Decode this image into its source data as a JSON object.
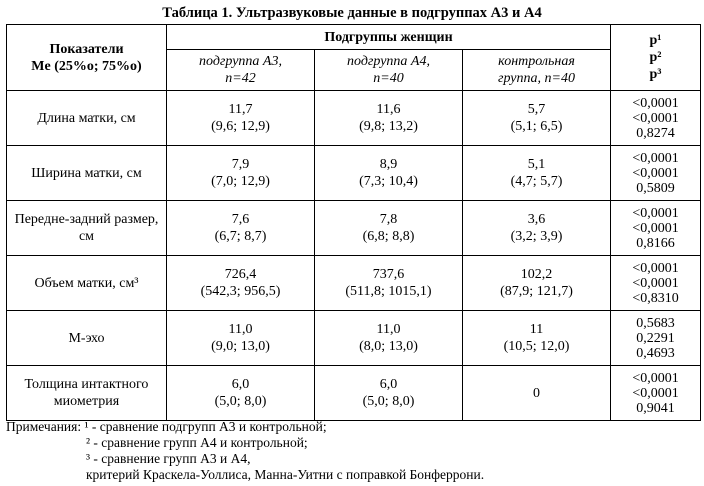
{
  "caption": "Таблица 1. Ультразвуковые данные в подгруппах А3 и А4",
  "header": {
    "indicator_line1": "Показатели",
    "indicator_line2": "Me (25%о; 75%о)",
    "group_title": "Подгруппы женщин",
    "sub_a3_line1": "подгруппа А3,",
    "sub_a3_line2": "n=42",
    "sub_a4_line1": "подгруппа А4,",
    "sub_a4_line2": "n=40",
    "sub_control_line1": "контрольная",
    "sub_control_line2": "группа, n=40",
    "p1": "р¹",
    "p2": "р²",
    "p3": "р³"
  },
  "rows": [
    {
      "name": "Длина матки, см",
      "a3": [
        "11,7",
        "(9,6; 12,9)"
      ],
      "a4": [
        "11,6",
        "(9,8; 13,2)"
      ],
      "control": [
        "5,7",
        "(5,1; 6,5)"
      ],
      "p": [
        "<0,0001",
        "<0,0001",
        "0,8274"
      ]
    },
    {
      "name": "Ширина матки, см",
      "a3": [
        "7,9",
        "(7,0; 12,9)"
      ],
      "a4": [
        "8,9",
        "(7,3; 10,4)"
      ],
      "control": [
        "5,1",
        "(4,7; 5,7)"
      ],
      "p": [
        "<0,0001",
        "<0,0001",
        "0,5809"
      ]
    },
    {
      "name": "Передне-задний размер, см",
      "a3": [
        "7,6",
        "(6,7; 8,7)"
      ],
      "a4": [
        "7,8",
        "(6,8; 8,8)"
      ],
      "control": [
        "3,6",
        "(3,2; 3,9)"
      ],
      "p": [
        "<0,0001",
        "<0,0001",
        "0,8166"
      ]
    },
    {
      "name": "Объем матки, см³",
      "a3": [
        "726,4",
        "(542,3; 956,5)"
      ],
      "a4": [
        "737,6",
        "(511,8; 1015,1)"
      ],
      "control": [
        "102,2",
        "(87,9; 121,7)"
      ],
      "p": [
        "<0,0001",
        "<0,0001",
        "<0,8310"
      ]
    },
    {
      "name": "М-эхо",
      "a3": [
        "11,0",
        "(9,0; 13,0)"
      ],
      "a4": [
        "11,0",
        "(8,0; 13,0)"
      ],
      "control": [
        "11",
        "(10,5; 12,0)"
      ],
      "p": [
        "0,5683",
        "0,2291",
        "0,4693"
      ]
    },
    {
      "name": "Толщина интактного миометрия",
      "a3": [
        "6,0",
        "(5,0; 8,0)"
      ],
      "a4": [
        "6,0",
        "(5,0; 8,0)"
      ],
      "control": [
        "0",
        ""
      ],
      "p": [
        "<0,0001",
        "<0,0001",
        "0,9041"
      ]
    }
  ],
  "notes": [
    "Примечания: ¹ - сравнение подгрупп А3 и контрольной;",
    "² - сравнение групп А4 и контрольной;",
    "³ - сравнение групп А3 и А4,",
    "критерий Краскела-Уоллиса, Манна-Уитни с поправкой Бонферрони."
  ]
}
